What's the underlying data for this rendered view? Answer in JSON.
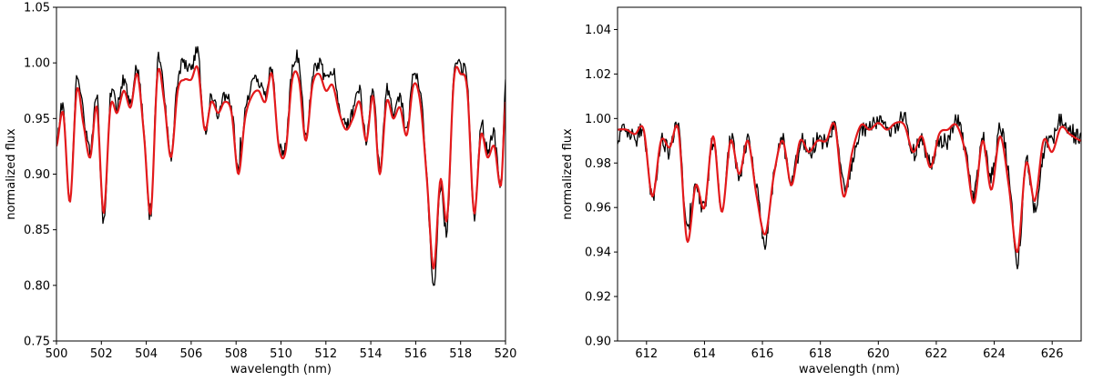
{
  "chart_data": [
    {
      "type": "line",
      "xlabel": "wavelength (nm)",
      "ylabel": "normalized flux",
      "xlim": [
        500,
        520
      ],
      "ylim": [
        0.75,
        1.05
      ],
      "xticks": [
        500,
        502,
        504,
        506,
        508,
        510,
        512,
        514,
        516,
        518,
        520
      ],
      "yticks": [
        0.75,
        0.8,
        0.85,
        0.9,
        0.95,
        1.0,
        1.05
      ],
      "ytick_decimals": 2,
      "grid": false,
      "series": [
        {
          "color": "#000000",
          "style": "noisy",
          "noise": 0.006,
          "x": [
            500.0,
            500.3,
            500.6,
            500.9,
            501.2,
            501.5,
            501.8,
            502.1,
            502.4,
            502.7,
            503.0,
            503.3,
            503.6,
            503.9,
            504.2,
            504.5,
            504.8,
            505.1,
            505.4,
            505.7,
            506.0,
            506.3,
            506.6,
            506.9,
            507.2,
            507.5,
            507.8,
            508.1,
            508.4,
            508.7,
            509.0,
            509.3,
            509.6,
            509.9,
            510.2,
            510.5,
            510.8,
            511.1,
            511.4,
            511.7,
            512.0,
            512.3,
            512.6,
            512.9,
            513.2,
            513.5,
            513.8,
            514.1,
            514.4,
            514.7,
            515.0,
            515.3,
            515.6,
            515.9,
            516.2,
            516.5,
            516.8,
            517.1,
            517.4,
            517.7,
            518.0,
            518.3,
            518.6,
            518.9,
            519.2,
            519.5,
            519.8,
            520.0
          ],
          "y": [
            0.93,
            0.96,
            0.875,
            0.985,
            0.955,
            0.92,
            0.97,
            0.855,
            0.97,
            0.96,
            0.985,
            0.965,
            0.995,
            0.94,
            0.86,
            1.0,
            0.97,
            0.915,
            0.985,
            1.0,
            0.995,
            1.01,
            0.94,
            0.97,
            0.955,
            0.97,
            0.96,
            0.905,
            0.955,
            0.98,
            0.985,
            0.97,
            0.995,
            0.93,
            0.925,
            0.995,
            1.0,
            0.935,
            0.985,
            1.0,
            0.985,
            0.99,
            0.96,
            0.945,
            0.955,
            0.975,
            0.93,
            0.98,
            0.905,
            0.975,
            0.955,
            0.97,
            0.94,
            0.99,
            0.975,
            0.9,
            0.795,
            0.89,
            0.85,
            0.99,
            0.995,
            0.985,
            0.86,
            0.945,
            0.92,
            0.935,
            0.89,
            0.98
          ]
        },
        {
          "color": "#e31a1c",
          "style": "smooth",
          "x": [
            500.0,
            500.3,
            500.6,
            500.9,
            501.2,
            501.5,
            501.8,
            502.1,
            502.4,
            502.7,
            503.0,
            503.3,
            503.6,
            503.9,
            504.2,
            504.5,
            504.8,
            505.1,
            505.4,
            505.7,
            506.0,
            506.3,
            506.6,
            506.9,
            507.2,
            507.5,
            507.8,
            508.1,
            508.4,
            508.7,
            509.0,
            509.3,
            509.6,
            509.9,
            510.2,
            510.5,
            510.8,
            511.1,
            511.4,
            511.7,
            512.0,
            512.3,
            512.6,
            512.9,
            513.2,
            513.5,
            513.8,
            514.1,
            514.4,
            514.7,
            515.0,
            515.3,
            515.6,
            515.9,
            516.2,
            516.5,
            516.8,
            517.1,
            517.4,
            517.7,
            518.0,
            518.3,
            518.6,
            518.9,
            519.2,
            519.5,
            519.8,
            520.0
          ],
          "y": [
            0.925,
            0.955,
            0.875,
            0.975,
            0.945,
            0.915,
            0.96,
            0.865,
            0.96,
            0.955,
            0.975,
            0.96,
            0.99,
            0.935,
            0.865,
            0.99,
            0.965,
            0.915,
            0.975,
            0.985,
            0.985,
            0.995,
            0.94,
            0.965,
            0.955,
            0.965,
            0.955,
            0.9,
            0.95,
            0.97,
            0.975,
            0.965,
            0.99,
            0.925,
            0.92,
            0.985,
            0.985,
            0.93,
            0.98,
            0.99,
            0.975,
            0.98,
            0.955,
            0.94,
            0.95,
            0.965,
            0.93,
            0.97,
            0.9,
            0.965,
            0.95,
            0.96,
            0.935,
            0.98,
            0.965,
            0.895,
            0.815,
            0.895,
            0.86,
            0.985,
            0.99,
            0.975,
            0.865,
            0.935,
            0.915,
            0.925,
            0.89,
            0.965
          ]
        }
      ]
    },
    {
      "type": "line",
      "xlabel": "wavelength (nm)",
      "ylabel": "normalized flux",
      "xlim": [
        611,
        627
      ],
      "ylim": [
        0.9,
        1.05
      ],
      "xticks": [
        612,
        614,
        616,
        618,
        620,
        622,
        624,
        626
      ],
      "yticks": [
        0.9,
        0.92,
        0.94,
        0.96,
        0.98,
        1.0,
        1.02,
        1.04
      ],
      "ytick_decimals": 2,
      "grid": false,
      "series": [
        {
          "color": "#000000",
          "style": "noisy",
          "noise": 0.004,
          "x": [
            611.0,
            611.3,
            611.6,
            611.9,
            612.2,
            612.5,
            612.8,
            613.1,
            613.4,
            613.7,
            614.0,
            614.3,
            614.6,
            614.9,
            615.2,
            615.5,
            615.8,
            616.1,
            616.4,
            616.7,
            617.0,
            617.3,
            617.6,
            617.9,
            618.2,
            618.5,
            618.8,
            619.1,
            619.4,
            619.7,
            620.0,
            620.3,
            620.6,
            620.9,
            621.2,
            621.5,
            621.8,
            622.1,
            622.4,
            622.7,
            623.0,
            623.3,
            623.6,
            623.9,
            624.2,
            624.5,
            624.8,
            625.1,
            625.4,
            625.7,
            626.0,
            626.3,
            626.6,
            627.0
          ],
          "y": [
            0.99,
            0.995,
            0.99,
            0.995,
            0.965,
            0.99,
            0.985,
            0.995,
            0.95,
            0.97,
            0.96,
            0.99,
            0.96,
            0.99,
            0.975,
            0.99,
            0.97,
            0.945,
            0.975,
            0.99,
            0.97,
            0.99,
            0.985,
            0.99,
            0.99,
            0.995,
            0.97,
            0.98,
            0.995,
            0.995,
            1.0,
            0.995,
            0.995,
            1.0,
            0.985,
            0.99,
            0.98,
            0.99,
            0.99,
            1.0,
            0.985,
            0.965,
            0.99,
            0.975,
            0.995,
            0.975,
            0.935,
            0.98,
            0.96,
            0.985,
            0.99,
            1.0,
            0.995,
            0.99
          ]
        },
        {
          "color": "#e31a1c",
          "style": "smooth",
          "x": [
            611.0,
            611.3,
            611.6,
            611.9,
            612.2,
            612.5,
            612.8,
            613.1,
            613.4,
            613.7,
            614.0,
            614.3,
            614.6,
            614.9,
            615.2,
            615.5,
            615.8,
            616.1,
            616.4,
            616.7,
            617.0,
            617.3,
            617.6,
            617.9,
            618.2,
            618.5,
            618.8,
            619.1,
            619.4,
            619.7,
            620.0,
            620.3,
            620.6,
            620.9,
            621.2,
            621.5,
            621.8,
            622.1,
            622.4,
            622.7,
            623.0,
            623.3,
            623.6,
            623.9,
            624.2,
            624.5,
            624.8,
            625.1,
            625.4,
            625.7,
            626.0,
            626.3,
            626.6,
            627.0
          ],
          "y": [
            0.995,
            0.995,
            0.993,
            0.995,
            0.965,
            0.99,
            0.987,
            0.995,
            0.945,
            0.97,
            0.96,
            0.992,
            0.958,
            0.99,
            0.975,
            0.99,
            0.965,
            0.948,
            0.975,
            0.99,
            0.97,
            0.99,
            0.985,
            0.99,
            0.99,
            0.997,
            0.965,
            0.985,
            0.997,
            0.995,
            0.998,
            0.995,
            0.998,
            0.997,
            0.985,
            0.992,
            0.978,
            0.993,
            0.995,
            0.997,
            0.985,
            0.962,
            0.99,
            0.968,
            0.992,
            0.97,
            0.94,
            0.98,
            0.963,
            0.99,
            0.985,
            0.996,
            0.993,
            0.99
          ]
        }
      ]
    }
  ]
}
